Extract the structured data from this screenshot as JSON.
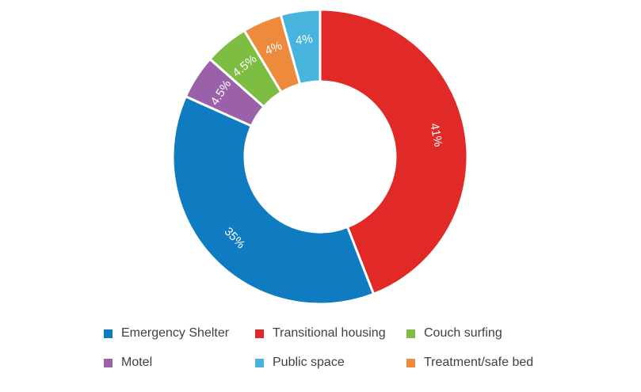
{
  "chart_data": {
    "type": "pie",
    "subtype": "donut",
    "title": "",
    "slices": [
      {
        "name": "Transitional housing",
        "value": 41,
        "label": "41%",
        "color": "#e12a27"
      },
      {
        "name": "Emergency Shelter",
        "value": 35,
        "label": "35%",
        "color": "#0f7cc1"
      },
      {
        "name": "Motel",
        "value": 4.5,
        "label": "4.5%",
        "color": "#9b61a8"
      },
      {
        "name": "Couch surfing",
        "value": 4.5,
        "label": "4.5%",
        "color": "#7cbd42"
      },
      {
        "name": "Treatment/safe bed",
        "value": 4,
        "label": "4%",
        "color": "#ee8a3c"
      },
      {
        "name": "Public space",
        "value": 4,
        "label": "4%",
        "color": "#48b4de"
      }
    ],
    "legend": {
      "placement": "bottom",
      "rows": [
        [
          "Emergency Shelter",
          "Transitional housing",
          "Couch surfing"
        ],
        [
          "Motel",
          "Public space",
          "Treatment/safe bed"
        ]
      ]
    }
  }
}
